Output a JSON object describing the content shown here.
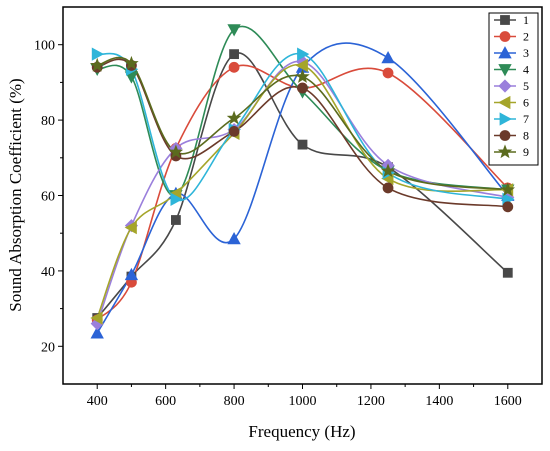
{
  "chart_data": {
    "type": "line",
    "xlabel": "Frequency (Hz)",
    "ylabel": "Sound Absorption Coefficient (%)",
    "xlim": [
      300,
      1700
    ],
    "ylim": [
      10,
      110
    ],
    "x_ticks": [
      400,
      600,
      800,
      1000,
      1200,
      1400,
      1600
    ],
    "y_ticks": [
      20,
      40,
      60,
      80,
      100
    ],
    "x_tick_labels": [
      "400",
      "600",
      "800",
      "1000",
      "1200",
      "1400",
      "1600"
    ],
    "y_tick_labels": [
      "20",
      "40",
      "60",
      "80",
      "100"
    ],
    "x": [
      400,
      500,
      630,
      800,
      1000,
      1250,
      1600
    ],
    "grid": false,
    "legend_position": "top-right",
    "series": [
      {
        "name": "1",
        "color": "#484848",
        "marker": "square",
        "values": [
          27.5,
          38.5,
          53.5,
          97.5,
          73.5,
          67.5,
          39.5
        ]
      },
      {
        "name": "2",
        "color": "#d94b3b",
        "marker": "circle",
        "values": [
          27.0,
          37.0,
          72.5,
          94.0,
          88.5,
          92.5,
          62.0
        ]
      },
      {
        "name": "3",
        "color": "#2b63d6",
        "marker": "triangle-up",
        "values": [
          23.5,
          39.0,
          60.5,
          48.5,
          94.0,
          96.5,
          60.0
        ]
      },
      {
        "name": "4",
        "color": "#2e8b57",
        "marker": "triangle-down",
        "values": [
          93.5,
          91.5,
          60.0,
          104.0,
          87.5,
          66.5,
          61.5
        ]
      },
      {
        "name": "5",
        "color": "#9a7fdc",
        "marker": "diamond",
        "values": [
          26.0,
          52.0,
          72.5,
          77.5,
          95.5,
          68.0,
          59.5
        ]
      },
      {
        "name": "6",
        "color": "#a5a52a",
        "marker": "triangle-left",
        "values": [
          27.5,
          51.5,
          60.5,
          76.5,
          94.5,
          64.5,
          61.5
        ]
      },
      {
        "name": "7",
        "color": "#2eb5d9",
        "marker": "triangle-right",
        "values": [
          97.5,
          93.5,
          59.0,
          77.5,
          97.5,
          66.0,
          59.0
        ]
      },
      {
        "name": "8",
        "color": "#6b3a2a",
        "marker": "circle",
        "values": [
          94.0,
          94.5,
          70.5,
          77.0,
          88.5,
          62.0,
          57.0
        ]
      },
      {
        "name": "9",
        "color": "#5b6b1e",
        "marker": "star",
        "values": [
          94.5,
          95.0,
          71.5,
          80.5,
          91.5,
          66.5,
          61.5
        ]
      }
    ]
  }
}
